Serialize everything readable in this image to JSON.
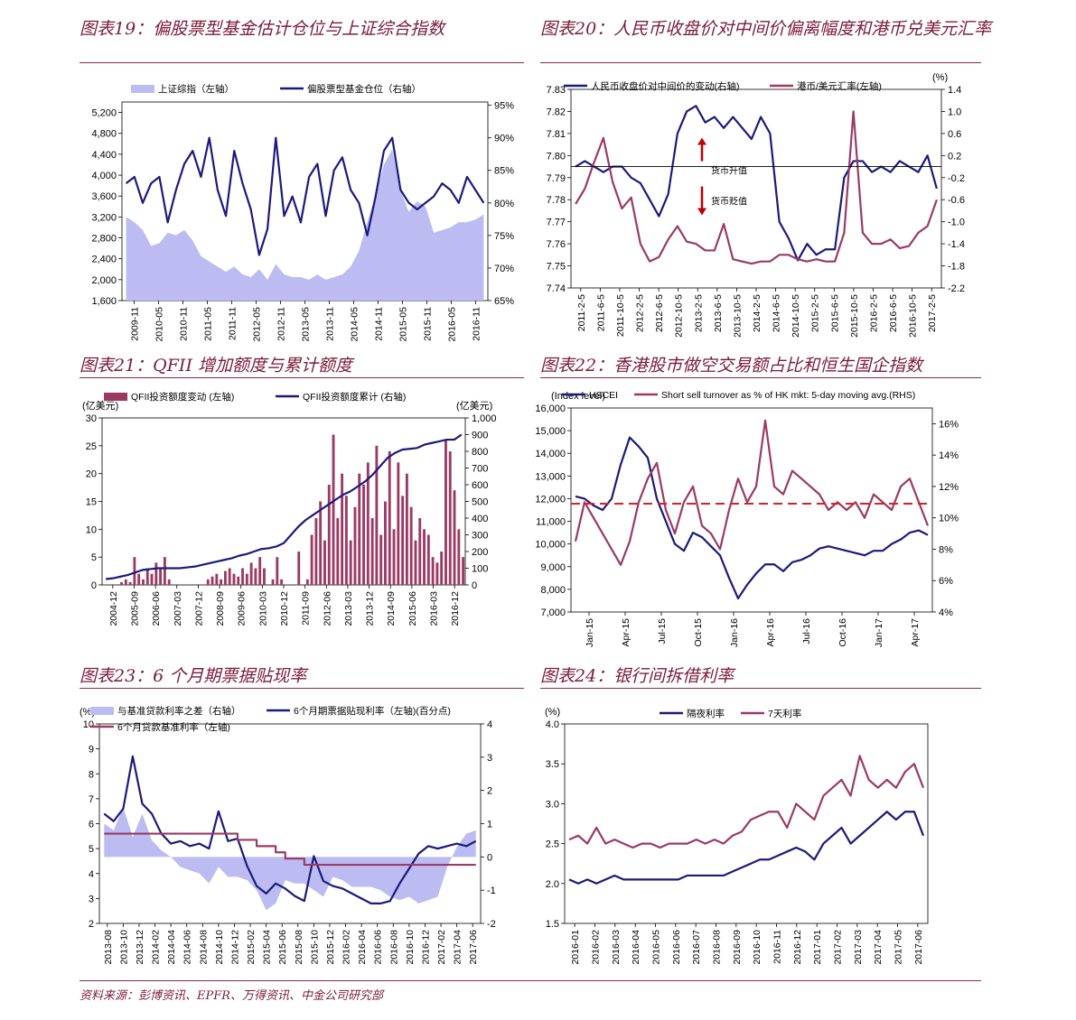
{
  "panels": [
    {
      "id": "c19",
      "title": "图表19：偏股票型基金估计仓位与上证综合指数"
    },
    {
      "id": "c20",
      "title": "图表20：人民币收盘价对中间价偏离幅度和港币兑美元汇率"
    },
    {
      "id": "c21",
      "title": "图表21：QFII 增加额度与累计额度"
    },
    {
      "id": "c22",
      "title": "图表22：香港股市做空交易额占比和恒生国企指数"
    },
    {
      "id": "c23",
      "title": "图表23：6 个月期票据贴现率"
    },
    {
      "id": "c24",
      "title": "图表24：银行间拆借利率"
    }
  ],
  "source": "资料来源：彭博资讯、EPFR、万得资讯、中金公司研究部",
  "colors": {
    "navy": "#1a1a7e",
    "maroon": "#9b3a63",
    "lavender": "#bcbcf2",
    "red": "#e02020",
    "title": "#7b1c3a"
  },
  "chart_data": [
    {
      "type": "area+line",
      "id": "c19",
      "x_ticks": [
        "2009-11",
        "2010-05",
        "2010-11",
        "2011-05",
        "2011-11",
        "2012-05",
        "2012-11",
        "2013-05",
        "2013-11",
        "2014-05",
        "2014-11",
        "2015-05",
        "2015-11",
        "2016-05",
        "2016-11"
      ],
      "y_left_ticks": [
        "1,600",
        "2,000",
        "2,400",
        "2,800",
        "3,200",
        "3,600",
        "4,000",
        "4,400",
        "4,800",
        "5,200"
      ],
      "y_left_range": [
        1600,
        5400
      ],
      "y_right_ticks": [
        "65%",
        "70%",
        "75%",
        "80%",
        "85%",
        "90%",
        "95%"
      ],
      "y_right_range": [
        65,
        95.5
      ],
      "series": [
        {
          "name": "上证综指（左轴）",
          "axis": "left",
          "type": "area",
          "values": [
            3200,
            3100,
            2950,
            2650,
            2700,
            2900,
            2850,
            2950,
            2750,
            2450,
            2350,
            2250,
            2150,
            2250,
            2100,
            2050,
            2200,
            2000,
            2300,
            2100,
            2050,
            2050,
            2000,
            2100,
            2000,
            2050,
            2100,
            2250,
            2550,
            3100,
            3600,
            4200,
            4500,
            3700,
            3300,
            3500,
            3400,
            2900,
            2950,
            3000,
            3100,
            3100,
            3150,
            3250
          ]
        },
        {
          "name": "偏股票型基金仓位（右轴）",
          "axis": "right",
          "type": "line",
          "values": [
            83,
            84,
            80,
            83,
            84,
            77,
            82,
            86,
            88,
            84,
            90,
            82,
            78,
            88,
            83,
            79,
            72,
            76,
            90,
            78,
            81,
            77,
            84,
            86,
            78,
            85,
            87,
            82,
            80,
            75,
            81,
            88,
            90,
            82,
            80,
            79,
            80,
            81,
            83,
            82,
            80,
            84,
            82,
            80
          ]
        }
      ]
    },
    {
      "type": "line",
      "id": "c20",
      "x_ticks": [
        "2011-2-5",
        "2011-6-5",
        "2011-10-5",
        "2012-2-5",
        "2012-6-5",
        "2012-10-5",
        "2013-2-5",
        "2013-6-5",
        "2013-10-5",
        "2014-2-5",
        "2014-6-5",
        "2014-10-5",
        "2015-2-5",
        "2015-6-5",
        "2015-10-5",
        "2016-2-5",
        "2016-6-5",
        "2016-10-5",
        "2017-2-5"
      ],
      "y_left_ticks": [
        "7.74",
        "7.75",
        "7.76",
        "7.77",
        "7.78",
        "7.79",
        "7.80",
        "7.81",
        "7.82",
        "7.83"
      ],
      "y_left_range": [
        7.74,
        7.83
      ],
      "y_right_ticks": [
        "1.4",
        "1.0",
        "0.6",
        "0.2",
        "-0.2",
        "-0.6",
        "-1.0",
        "-1.4",
        "-1.8",
        "-2.2"
      ],
      "y_right_range": [
        -2.2,
        1.4
      ],
      "y_right_unit": "(%)",
      "annotations": [
        "货币升值",
        "货币贬值"
      ],
      "series": [
        {
          "name": "人民币收盘价对中间价的变动(右轴)",
          "axis": "right",
          "values": [
            0.0,
            0.1,
            0.0,
            -0.1,
            0.0,
            0.0,
            -0.2,
            -0.3,
            -0.6,
            -0.9,
            -0.5,
            0.6,
            1.0,
            1.1,
            0.8,
            0.9,
            0.7,
            0.9,
            0.7,
            0.5,
            0.9,
            0.6,
            -1.0,
            -1.3,
            -1.7,
            -1.4,
            -1.6,
            -1.5,
            -1.5,
            -0.2,
            0.1,
            0.1,
            -0.1,
            0.0,
            -0.1,
            0.1,
            0.0,
            -0.1,
            0.2,
            -0.4
          ]
        },
        {
          "name": "港币/美元汇率(左轴)",
          "axis": "left",
          "values": [
            7.778,
            7.785,
            7.797,
            7.808,
            7.788,
            7.776,
            7.781,
            7.76,
            7.752,
            7.754,
            7.762,
            7.768,
            7.761,
            7.76,
            7.757,
            7.757,
            7.769,
            7.753,
            7.752,
            7.751,
            7.752,
            7.752,
            7.755,
            7.755,
            7.753,
            7.752,
            7.753,
            7.752,
            7.752,
            7.765,
            7.82,
            7.765,
            7.76,
            7.76,
            7.762,
            7.758,
            7.759,
            7.765,
            7.768,
            7.78
          ]
        }
      ]
    },
    {
      "type": "bar+line",
      "id": "c21",
      "x_ticks": [
        "2004-12",
        "2005-09",
        "2006-06",
        "2007-03",
        "2007-12",
        "2008-09",
        "2009-06",
        "2010-03",
        "2010-12",
        "2011-09",
        "2012-06",
        "2013-03",
        "2013-12",
        "2014-09",
        "2015-06",
        "2016-03",
        "2016-12"
      ],
      "y_left_ticks": [
        "0",
        "5",
        "10",
        "15",
        "20",
        "25",
        "30"
      ],
      "y_left_range": [
        0,
        30
      ],
      "y_left_unit": "(亿美元)",
      "y_right_ticks": [
        "0",
        "100",
        "200",
        "300",
        "400",
        "500",
        "600",
        "700",
        "800",
        "900",
        "1,000"
      ],
      "y_right_range": [
        0,
        1000
      ],
      "y_right_unit": "(亿美元)",
      "series": [
        {
          "name": "QFII投资额度变动 (左轴)",
          "axis": "left",
          "type": "bar",
          "values": [
            0,
            0,
            0,
            0,
            0.5,
            1,
            0.5,
            5,
            2,
            1,
            3,
            2,
            4,
            3,
            5,
            1,
            0,
            0,
            0,
            0,
            0,
            0,
            0,
            0,
            1,
            1.5,
            2,
            1,
            2.5,
            3,
            2,
            1.5,
            3,
            2,
            4,
            3,
            5,
            3,
            0,
            1,
            5,
            1,
            0,
            0,
            0,
            6,
            0,
            1,
            9,
            12,
            15,
            8,
            18,
            27,
            12,
            20,
            16,
            8,
            14,
            20,
            18,
            22,
            12,
            25,
            9,
            15,
            24,
            10,
            22,
            16,
            20,
            14,
            8,
            12,
            10,
            9,
            5,
            4,
            6,
            26,
            24,
            17,
            10,
            5
          ]
        },
        {
          "name": "QFII投资额度累计 (右轴)",
          "axis": "right",
          "type": "line",
          "values": [
            35,
            40,
            50,
            60,
            75,
            90,
            95,
            100,
            100,
            100,
            100,
            105,
            110,
            120,
            130,
            140,
            150,
            160,
            175,
            185,
            200,
            215,
            220,
            230,
            250,
            300,
            350,
            390,
            420,
            450,
            480,
            510,
            540,
            560,
            590,
            620,
            660,
            710,
            760,
            790,
            810,
            815,
            820,
            840,
            850,
            860,
            870,
            870,
            900
          ]
        }
      ]
    },
    {
      "type": "line",
      "id": "c22",
      "x_ticks": [
        "Jan-15",
        "Apr-15",
        "Jul-15",
        "Oct-15",
        "Jan-16",
        "Apr-16",
        "Jul-16",
        "Oct-16",
        "Jan-17",
        "Apr-17"
      ],
      "y_left_ticks": [
        "7,000",
        "8,000",
        "9,000",
        "10,000",
        "11,000",
        "12,000",
        "13,000",
        "14,000",
        "15,000",
        "16,000"
      ],
      "y_left_range": [
        7000,
        16000
      ],
      "y_left_unit": "(Index level)",
      "y_right_ticks": [
        "4%",
        "6%",
        "8%",
        "10%",
        "12%",
        "14%",
        "16%"
      ],
      "y_right_range": [
        4,
        17
      ],
      "reference_line_right": 10.9,
      "series": [
        {
          "name": "HSCEI",
          "axis": "left",
          "values": [
            12100,
            12000,
            11700,
            11500,
            12000,
            13500,
            14700,
            14300,
            13800,
            12000,
            11000,
            10000,
            9700,
            10500,
            10300,
            9900,
            9500,
            8500,
            7600,
            8200,
            8700,
            9100,
            9100,
            8800,
            9200,
            9300,
            9500,
            9800,
            9900,
            9800,
            9700,
            9600,
            9500,
            9700,
            9700,
            10000,
            10200,
            10500,
            10600,
            10400
          ]
        },
        {
          "name": "Short sell turnover as % of HK mkt: 5-day moving avg.(RHS)",
          "axis": "right",
          "values": [
            8.5,
            11.0,
            10.0,
            9.0,
            8.0,
            7.0,
            8.5,
            11.0,
            12.5,
            13.5,
            10.5,
            9.0,
            11.0,
            12.0,
            9.5,
            9.0,
            8.0,
            10.5,
            12.5,
            11.0,
            12.0,
            16.2,
            12.0,
            11.5,
            13.0,
            12.5,
            12.0,
            11.5,
            10.5,
            11.0,
            10.5,
            11.0,
            10.0,
            11.5,
            11.0,
            10.5,
            12.0,
            12.5,
            11.0,
            9.5
          ]
        }
      ]
    },
    {
      "type": "area+line",
      "id": "c23",
      "x_ticks": [
        "2013-08",
        "2013-10",
        "2013-12",
        "2014-02",
        "2014-04",
        "2014-06",
        "2014-08",
        "2014-10",
        "2014-12",
        "2015-02",
        "2015-04",
        "2015-06",
        "2015-08",
        "2015-10",
        "2015-12",
        "2016-02",
        "2016-04",
        "2016-06",
        "2016-08",
        "2016-10",
        "2016-12",
        "2017-02",
        "2017-04",
        "2017-06"
      ],
      "y_left_ticks": [
        "2",
        "3",
        "4",
        "5",
        "6",
        "7",
        "8",
        "9",
        "10"
      ],
      "y_left_range": [
        2,
        10
      ],
      "y_left_unit": "(%)",
      "y_right_ticks": [
        "-2",
        "-1",
        "0",
        "1",
        "2",
        "3",
        "4"
      ],
      "y_right_range": [
        -2,
        4
      ],
      "series": [
        {
          "name": "与基准贷款利率之差（右轴）",
          "axis": "right",
          "type": "area",
          "values": [
            1.0,
            0.8,
            1.5,
            0.6,
            1.3,
            0.5,
            0.2,
            0.0,
            -0.3,
            -0.4,
            -0.5,
            -0.8,
            -0.3,
            -0.6,
            -0.6,
            -0.7,
            -1.0,
            -1.6,
            -1.4,
            -0.7,
            -0.8,
            -0.8,
            -1.0,
            -1.2,
            -0.6,
            -0.7,
            -0.9,
            -0.9,
            -0.9,
            -1.0,
            -1.2,
            -1.3,
            -1.2,
            -1.4,
            -1.3,
            -1.2,
            -0.3,
            0.3,
            0.7,
            0.8
          ]
        },
        {
          "name": "6个月期票据贴现利率（左轴)(百分点)",
          "axis": "left",
          "type": "line",
          "values": [
            6.4,
            6.1,
            6.6,
            8.7,
            6.8,
            6.4,
            5.6,
            5.2,
            5.3,
            5.1,
            5.2,
            5.0,
            6.5,
            5.3,
            5.4,
            4.3,
            3.5,
            3.2,
            3.6,
            3.4,
            3.1,
            2.9,
            4.7,
            3.7,
            3.5,
            3.4,
            3.2,
            3.0,
            2.8,
            2.8,
            2.9,
            3.6,
            4.2,
            4.8,
            5.1,
            5.0,
            5.1,
            5.2,
            5.1,
            5.3
          ]
        },
        {
          "name": "6个月贷款基准利率（左轴)",
          "axis": "left",
          "type": "step",
          "values": [
            5.6,
            5.6,
            5.6,
            5.6,
            5.6,
            5.6,
            5.6,
            5.6,
            5.6,
            5.6,
            5.6,
            5.6,
            5.6,
            5.6,
            5.35,
            5.35,
            5.1,
            5.1,
            4.85,
            4.6,
            4.6,
            4.35,
            4.35,
            4.35,
            4.35,
            4.35,
            4.35,
            4.35,
            4.35,
            4.35,
            4.35,
            4.35,
            4.35,
            4.35,
            4.35,
            4.35,
            4.35,
            4.35,
            4.35,
            4.35
          ]
        }
      ]
    },
    {
      "type": "line",
      "id": "c24",
      "x_ticks": [
        "2016-01",
        "2016-02",
        "2016-03",
        "2016-04",
        "2016-05",
        "2016-06",
        "2016-07",
        "2016-08",
        "2016-09",
        "2016-10",
        "2016-11",
        "2016-12",
        "2017-01",
        "2017-02",
        "2017-03",
        "2017-04",
        "2017-05",
        "2017-06"
      ],
      "y_left_ticks": [
        "1.5",
        "2.0",
        "2.5",
        "3.0",
        "3.5",
        "4.0"
      ],
      "y_left_range": [
        1.5,
        4.0
      ],
      "y_left_unit": "(%)",
      "series": [
        {
          "name": "隔夜利率",
          "axis": "left",
          "values": [
            2.05,
            2.0,
            2.05,
            2.0,
            2.05,
            2.1,
            2.05,
            2.05,
            2.05,
            2.05,
            2.05,
            2.05,
            2.05,
            2.1,
            2.1,
            2.1,
            2.1,
            2.1,
            2.15,
            2.2,
            2.25,
            2.3,
            2.3,
            2.35,
            2.4,
            2.45,
            2.4,
            2.3,
            2.5,
            2.6,
            2.7,
            2.5,
            2.6,
            2.7,
            2.8,
            2.9,
            2.8,
            2.9,
            2.9,
            2.6
          ]
        },
        {
          "name": "7天利率",
          "axis": "left",
          "values": [
            2.55,
            2.6,
            2.5,
            2.7,
            2.5,
            2.55,
            2.5,
            2.45,
            2.5,
            2.5,
            2.45,
            2.5,
            2.5,
            2.5,
            2.55,
            2.5,
            2.55,
            2.5,
            2.6,
            2.65,
            2.8,
            2.85,
            2.9,
            2.9,
            2.7,
            3.0,
            2.9,
            2.8,
            3.1,
            3.2,
            3.3,
            3.1,
            3.6,
            3.3,
            3.2,
            3.3,
            3.2,
            3.4,
            3.5,
            3.2
          ]
        }
      ]
    }
  ]
}
